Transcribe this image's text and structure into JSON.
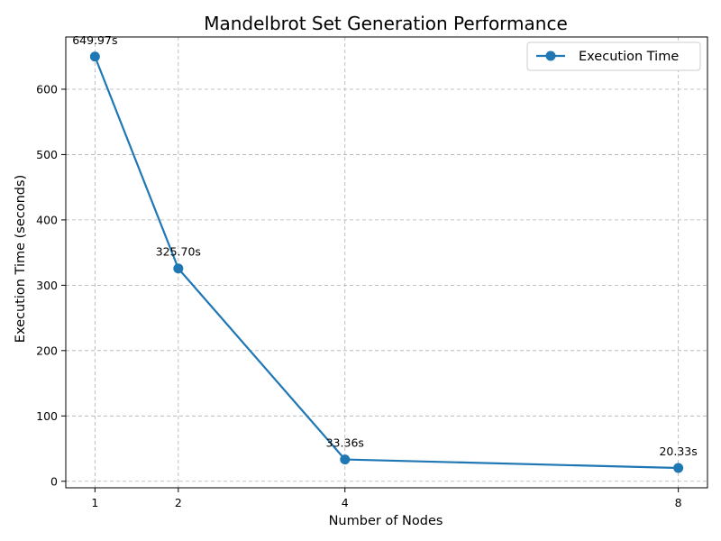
{
  "chart_data": {
    "type": "line",
    "title": "Mandelbrot Set Generation Performance",
    "xlabel": "Number of Nodes",
    "ylabel": "Execution Time (seconds)",
    "x": [
      1,
      2,
      4,
      8
    ],
    "xticks": [
      "1",
      "2",
      "4",
      "8"
    ],
    "yticks": [
      0,
      100,
      200,
      300,
      400,
      500,
      600
    ],
    "xlim": [
      0.65,
      8.35
    ],
    "ylim": [
      -10,
      680
    ],
    "grid": true,
    "legend_position": "top-right",
    "series": [
      {
        "name": "Execution Time",
        "values": [
          649.97,
          325.7,
          33.36,
          20.33
        ],
        "labels": [
          "649.97s",
          "325.70s",
          "33.36s",
          "20.33s"
        ],
        "color": "#1f77b4",
        "marker": "circle"
      }
    ]
  }
}
